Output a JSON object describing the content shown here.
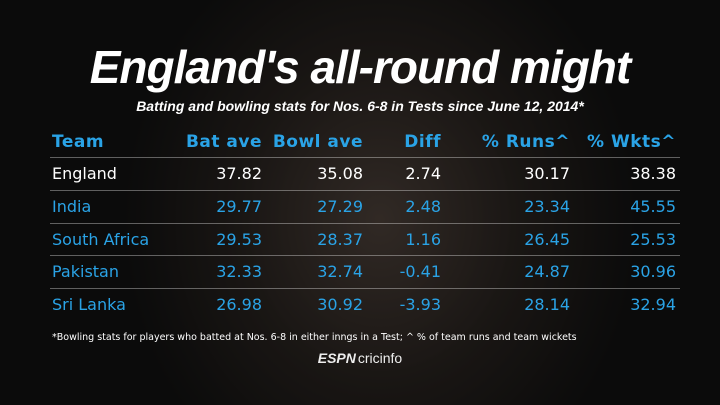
{
  "header": {
    "title": "England's all-round might",
    "subtitle": "Batting and bowling stats for Nos. 6-8 in Tests since June 12, 2014*"
  },
  "table": {
    "columns": [
      "Team",
      "Bat ave",
      "Bowl ave",
      "Diff",
      "% Runs^",
      "% Wkts^"
    ],
    "rows": [
      [
        "England",
        "37.82",
        "35.08",
        "2.74",
        "30.17",
        "38.38"
      ],
      [
        "India",
        "29.77",
        "27.29",
        "2.48",
        "23.34",
        "45.55"
      ],
      [
        "South Africa",
        "29.53",
        "28.37",
        "1.16",
        "26.45",
        "25.53"
      ],
      [
        "Pakistan",
        "32.33",
        "32.74",
        "-0.41",
        "24.87",
        "30.96"
      ],
      [
        "Sri Lanka",
        "26.98",
        "30.92",
        "-3.93",
        "28.14",
        "32.94"
      ]
    ]
  },
  "footnote": "*Bowling stats for players who batted at Nos. 6-8 in either inngs in a Test; ^ % of team runs and team wickets",
  "logo": {
    "brand": "ESPN",
    "site": "cricinfo"
  }
}
